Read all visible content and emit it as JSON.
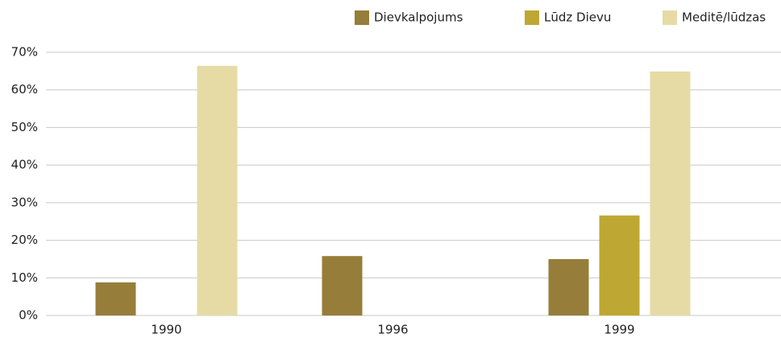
{
  "chart_data": {
    "type": "bar",
    "categories": [
      "1990",
      "1996",
      "1999"
    ],
    "series": [
      {
        "name": "Dievkalpojums",
        "color": "#967d3a",
        "values": [
          8.8,
          15.8,
          15.0
        ]
      },
      {
        "name": "Lūdz Dievu",
        "color": "#bfa733",
        "values": [
          null,
          null,
          26.6
        ]
      },
      {
        "name": "Meditē/lūdzas",
        "color": "#e6dba5",
        "values": [
          66.4,
          null,
          64.9
        ]
      }
    ],
    "ylim": [
      0,
      70
    ],
    "yticks": [
      {
        "value": 0,
        "label": "0%"
      },
      {
        "value": 10,
        "label": "10%"
      },
      {
        "value": 20,
        "label": "20%"
      },
      {
        "value": 30,
        "label": "30%"
      },
      {
        "value": 40,
        "label": "40%"
      },
      {
        "value": 50,
        "label": "50%"
      },
      {
        "value": 60,
        "label": "60%"
      },
      {
        "value": 70,
        "label": "70%"
      }
    ],
    "grid": true,
    "legend": "top-right"
  }
}
